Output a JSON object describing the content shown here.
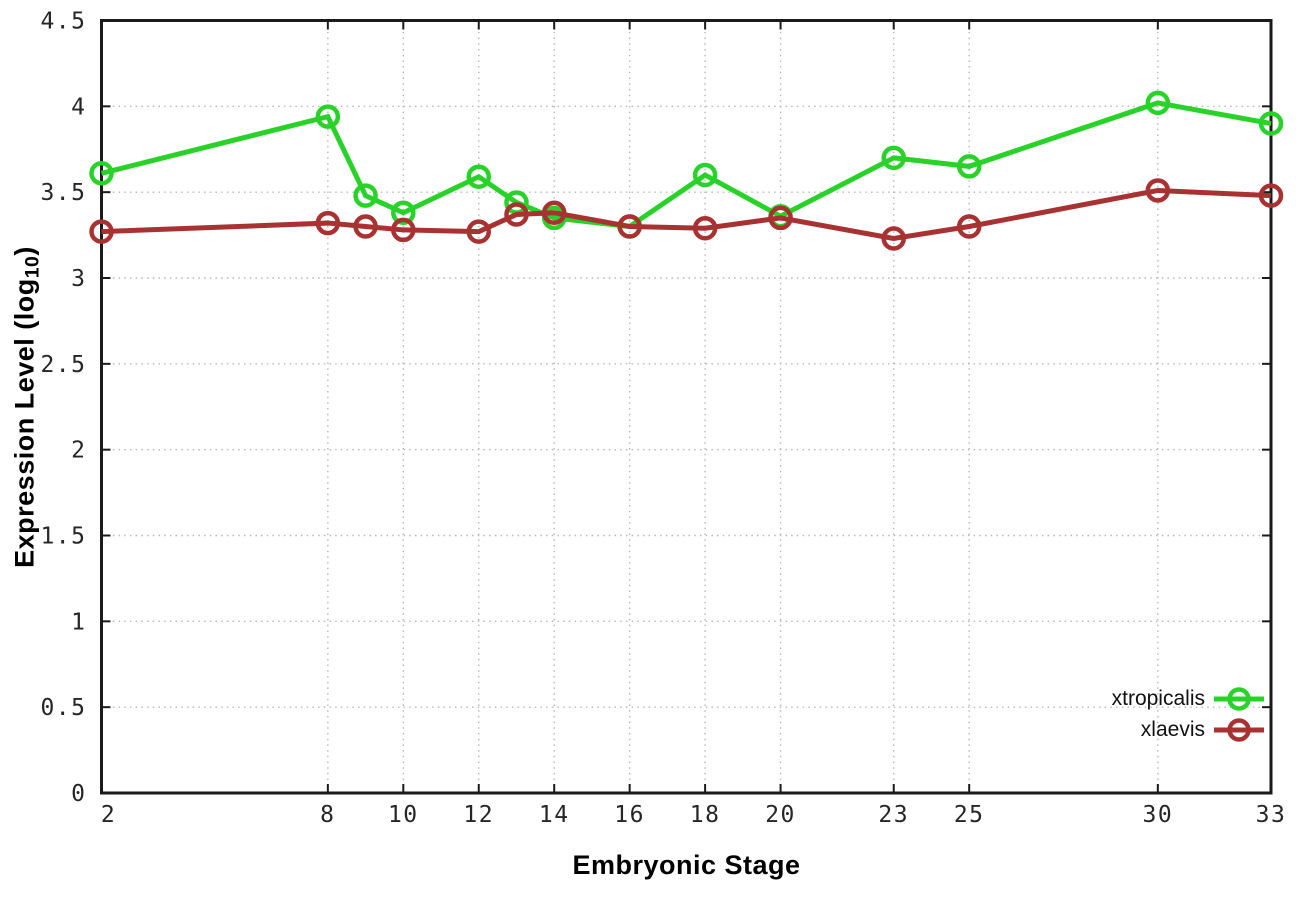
{
  "chart_data": {
    "type": "line",
    "title": "",
    "xlabel": "Embryonic Stage",
    "ylabel": "Expression Level (log10)",
    "ylabel_parts": {
      "prefix": "Expression Level (log",
      "subscript": "10",
      "suffix": ")"
    },
    "xlim": [
      2,
      33
    ],
    "ylim": [
      0,
      4.5
    ],
    "x_ticks": [
      2,
      8,
      10,
      12,
      14,
      16,
      18,
      20,
      23,
      25,
      30,
      33
    ],
    "x_tick_labels": [
      "2",
      "8",
      "10",
      "12",
      "14",
      "16",
      "18",
      "20",
      "23",
      "25",
      "30",
      "33"
    ],
    "y_ticks": [
      0,
      0.5,
      1,
      1.5,
      2,
      2.5,
      3,
      3.5,
      4,
      4.5
    ],
    "y_tick_labels": [
      "0",
      "0.5",
      "1",
      "1.5",
      "2",
      "2.5",
      "3",
      "3.5",
      "4",
      "4.5"
    ],
    "grid": true,
    "legend_position": "inside-bottom-right",
    "x": [
      2,
      8,
      9,
      10,
      12,
      13,
      14,
      16,
      18,
      20,
      23,
      25,
      30,
      33
    ],
    "series": [
      {
        "name": "xtropicalis",
        "color": "#28d228",
        "values": [
          3.61,
          3.94,
          3.48,
          3.38,
          3.59,
          3.44,
          3.35,
          3.3,
          3.6,
          3.36,
          3.7,
          3.65,
          4.02,
          3.9
        ]
      },
      {
        "name": "xlaevis",
        "color": "#a83232",
        "values": [
          3.27,
          3.32,
          3.3,
          3.28,
          3.27,
          3.37,
          3.38,
          3.3,
          3.29,
          3.35,
          3.23,
          3.3,
          3.51,
          3.48
        ]
      }
    ]
  },
  "style_colors": {
    "border": "#1a1a1a",
    "grid": "#b8b8b8",
    "tick_label": "#262626"
  }
}
